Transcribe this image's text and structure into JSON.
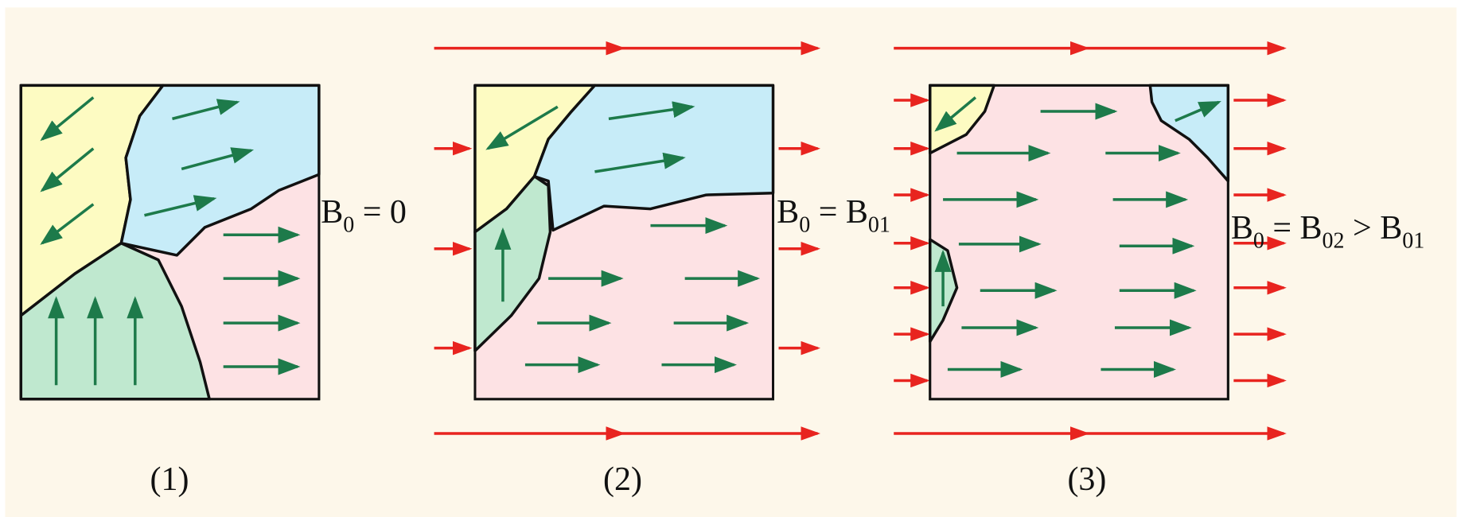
{
  "panels": [
    {
      "caption": "(1)",
      "field": [
        {
          "text": "B"
        },
        {
          "text": "0",
          "sub": true
        },
        {
          "text": " = 0"
        }
      ]
    },
    {
      "caption": "(2)",
      "field": [
        {
          "text": "B"
        },
        {
          "text": "0",
          "sub": true
        },
        {
          "text": " = B"
        },
        {
          "text": "01",
          "sub": true
        }
      ]
    },
    {
      "caption": "(3)",
      "field": [
        {
          "text": "B"
        },
        {
          "text": "0",
          "sub": true
        },
        {
          "text": " = B"
        },
        {
          "text": "02",
          "sub": true
        },
        {
          "text": " > B"
        },
        {
          "text": "01",
          "sub": true
        }
      ]
    }
  ]
}
